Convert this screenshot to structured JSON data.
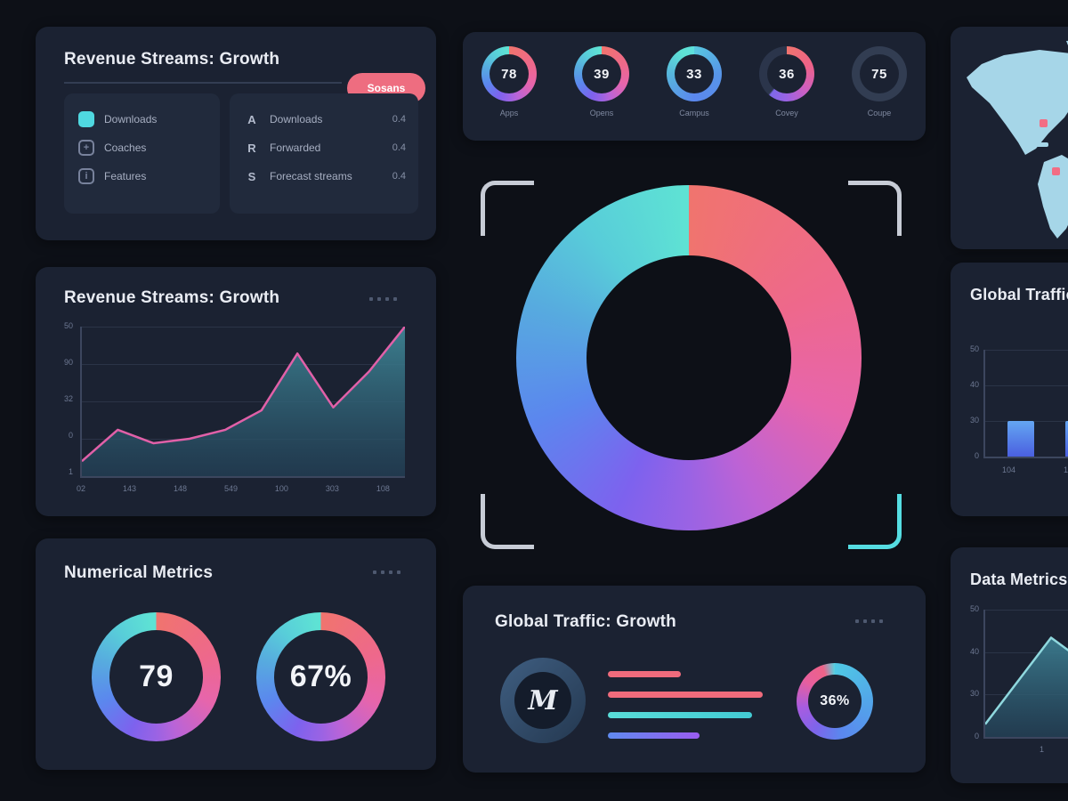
{
  "colors": {
    "background": "#0d1017",
    "card": "#1b2232",
    "panel": "#212a3c",
    "accent_pink": "#ee6d80",
    "teal": "#5ee2d4",
    "blue": "#5b87ee",
    "purple": "#8a5ff0",
    "magenta": "#e160a8",
    "coral": "#f0746e",
    "map_land": "#a6d6e8",
    "map_marker": "#f26d84",
    "muted_text": "#8791a7",
    "title_text": "#e9ecf3",
    "ring_track": "#2b354b"
  },
  "cards": {
    "legend": {
      "title": "Revenue Streams: Growth",
      "button_label": "Sosans",
      "left_items": [
        {
          "icon": "cyan-square",
          "label": "Downloads"
        },
        {
          "icon": "plus-square",
          "label": "Coaches"
        },
        {
          "icon": "outline-square",
          "label": "Features"
        }
      ],
      "right_items": [
        {
          "icon": "A",
          "label": "Downloads",
          "value": "0.4"
        },
        {
          "icon": "R",
          "label": "Forwarded",
          "value": "0.4"
        },
        {
          "icon": "S",
          "label": "Forecast streams",
          "value": "0.4"
        }
      ]
    },
    "revenue": {
      "title": "Revenue Streams: Growth"
    },
    "traffic_right": {
      "title": "Global Traffic"
    },
    "numerical": {
      "title": "Numerical Metrics"
    },
    "traffic_growth": {
      "title": "Global Traffic: Growth",
      "avatar_letter": "M"
    },
    "data_metrics": {
      "title": "Data Metrics"
    }
  },
  "chart_data": [
    {
      "id": "gauges_row",
      "type": "pie",
      "subtype": "gauge_row",
      "gauges": [
        {
          "value": "78",
          "label": "Apps"
        },
        {
          "value": "39",
          "label": "Opens"
        },
        {
          "value": "33",
          "label": "Campus"
        },
        {
          "value": "36",
          "label": "Covey"
        },
        {
          "value": "75",
          "label": "Coupe"
        }
      ]
    },
    {
      "id": "big_donut",
      "type": "pie",
      "slices": [
        {
          "name": "left-half",
          "value": 50,
          "colors": [
            "#5ee2d4",
            "#5b87ee",
            "#7d62ee"
          ]
        },
        {
          "name": "right-half",
          "value": 50,
          "colors": [
            "#f0746e",
            "#e765ab",
            "#9a63e4"
          ]
        }
      ]
    },
    {
      "id": "revenue",
      "type": "area",
      "title": "Revenue Streams: Growth",
      "x_ticks": [
        "02",
        "143",
        "148",
        "549",
        "100",
        "303",
        "108"
      ],
      "y_ticks": [
        "50",
        "90",
        "32",
        "0",
        "1"
      ],
      "values": [
        10,
        31,
        22,
        25,
        31,
        44,
        82,
        46,
        70,
        100
      ],
      "ylim": [
        0,
        100
      ],
      "line_color": "#e160a8",
      "fill_color": "#2f6a76",
      "grid": true
    },
    {
      "id": "traffic_bars",
      "type": "bar",
      "title": "Global Traffic",
      "categories": [
        "104",
        "1"
      ],
      "values": [
        33,
        33
      ],
      "y_ticks": [
        "50",
        "40",
        "30",
        "0"
      ],
      "bar_color": "#4a5fe0",
      "bar_color_top": "#64a6f2",
      "grid": true
    },
    {
      "id": "numerical_gauges",
      "type": "pie",
      "subtype": "gauge_row",
      "gauges": [
        {
          "value": "79",
          "label": ""
        },
        {
          "value": "67%",
          "label": ""
        }
      ]
    },
    {
      "id": "growth_bars",
      "type": "bar",
      "orientation": "horizontal",
      "bars": [
        {
          "width_pct": 47,
          "color": "#ef6b7c",
          "color2": ""
        },
        {
          "width_pct": 100,
          "color": "#ef6b7c",
          "color2": ""
        },
        {
          "width_pct": 93,
          "color": "#59dcd8",
          "color2": "#43cbd4"
        },
        {
          "width_pct": 59,
          "color": "#5f8af0",
          "color2": "#9a5cf0"
        }
      ],
      "gauge_value": "36%"
    },
    {
      "id": "data_area",
      "type": "area",
      "title": "Data Metrics",
      "x_ticks": [
        "1"
      ],
      "y_ticks": [
        "50",
        "40",
        "30",
        "0"
      ],
      "values": [
        10,
        78,
        40
      ],
      "ylim": [
        0,
        100
      ],
      "line_color": "#8fd8de",
      "fill_color": "#2e5f70",
      "grid": true
    }
  ]
}
